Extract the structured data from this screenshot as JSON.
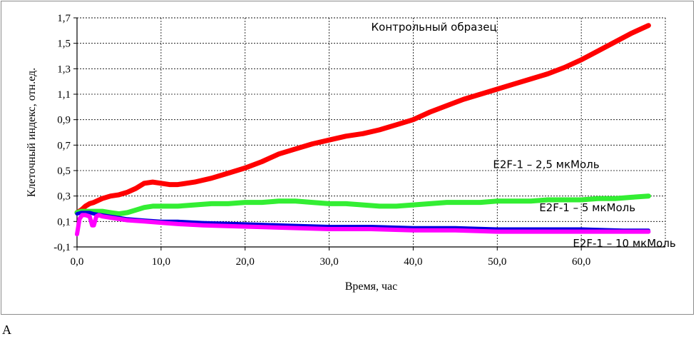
{
  "panel_label": "А",
  "chart_data": {
    "type": "line",
    "title": "",
    "xlabel": "Время, час",
    "ylabel": "Клеточный индекс, отн.ед.",
    "xlim": [
      0,
      70
    ],
    "ylim": [
      -0.1,
      1.7
    ],
    "x_ticks": [
      "0,0",
      "10,0",
      "20,0",
      "30,0",
      "40,0",
      "50,0",
      "60,0"
    ],
    "x_tick_values": [
      0,
      10,
      20,
      30,
      40,
      50,
      60
    ],
    "y_ticks": [
      "-0,1",
      "0,1",
      "0,3",
      "0,5",
      "0,7",
      "0,9",
      "1,1",
      "1,3",
      "1,5",
      "1,7"
    ],
    "y_tick_values": [
      -0.1,
      0.1,
      0.3,
      0.5,
      0.7,
      0.9,
      1.1,
      1.3,
      1.5,
      1.7
    ],
    "grid": true,
    "legend": "none",
    "series": [
      {
        "name": "Контрольный образец",
        "color": "#ff0000",
        "x": [
          0,
          0.5,
          1,
          1.5,
          2,
          3,
          4,
          5,
          6,
          7,
          8,
          9,
          10,
          11,
          12,
          14,
          16,
          18,
          20,
          22,
          24,
          26,
          28,
          30,
          32,
          34,
          36,
          38,
          40,
          42,
          44,
          46,
          48,
          50,
          52,
          54,
          56,
          58,
          60,
          62,
          64,
          66,
          68
        ],
        "y": [
          0.17,
          0.19,
          0.22,
          0.24,
          0.25,
          0.28,
          0.3,
          0.31,
          0.33,
          0.36,
          0.4,
          0.41,
          0.4,
          0.39,
          0.39,
          0.41,
          0.44,
          0.48,
          0.52,
          0.57,
          0.63,
          0.67,
          0.71,
          0.74,
          0.77,
          0.79,
          0.82,
          0.86,
          0.9,
          0.96,
          1.01,
          1.06,
          1.1,
          1.14,
          1.18,
          1.22,
          1.26,
          1.31,
          1.37,
          1.44,
          1.51,
          1.58,
          1.64
        ],
        "annotation": "Контрольный образец",
        "annotation_anchor": [
          35,
          1.6
        ]
      },
      {
        "name": "E2F-1 – 2,5 мкМоль",
        "color": "#33ee33",
        "x": [
          0,
          0.5,
          1,
          1.5,
          2,
          3,
          4,
          5,
          6,
          7,
          8,
          9,
          10,
          12,
          14,
          16,
          18,
          20,
          22,
          24,
          26,
          28,
          30,
          32,
          34,
          36,
          38,
          40,
          42,
          44,
          46,
          48,
          50,
          52,
          54,
          56,
          58,
          60,
          62,
          64,
          66,
          68
        ],
        "y": [
          0.17,
          0.18,
          0.18,
          0.18,
          0.18,
          0.18,
          0.17,
          0.16,
          0.17,
          0.19,
          0.21,
          0.22,
          0.22,
          0.22,
          0.23,
          0.24,
          0.24,
          0.25,
          0.25,
          0.26,
          0.26,
          0.25,
          0.24,
          0.24,
          0.23,
          0.22,
          0.22,
          0.23,
          0.24,
          0.25,
          0.25,
          0.25,
          0.26,
          0.26,
          0.26,
          0.27,
          0.27,
          0.27,
          0.28,
          0.28,
          0.29,
          0.3
        ],
        "annotation": "E2F-1 – 2,5 мкМоль",
        "annotation_anchor": [
          49.5,
          0.52
        ]
      },
      {
        "name": "E2F-1 – 5 мкМоль",
        "color": "#0000dd",
        "x": [
          0,
          0.5,
          1,
          1.5,
          2,
          3,
          4,
          5,
          6,
          8,
          10,
          12,
          15,
          20,
          25,
          30,
          35,
          40,
          45,
          50,
          55,
          60,
          65,
          68
        ],
        "y": [
          0.16,
          0.17,
          0.17,
          0.17,
          0.16,
          0.15,
          0.14,
          0.13,
          0.12,
          0.11,
          0.1,
          0.1,
          0.09,
          0.08,
          0.07,
          0.06,
          0.06,
          0.05,
          0.05,
          0.04,
          0.04,
          0.04,
          0.03,
          0.03
        ],
        "annotation": "E2F-1 – 5 мкМоль",
        "annotation_anchor": [
          55,
          0.18
        ]
      },
      {
        "name": "E2F-1 – 10 мкМоль",
        "color": "#ff00ff",
        "x": [
          0,
          0.3,
          0.6,
          1,
          1.5,
          1.8,
          2,
          2.3,
          2.6,
          3,
          4,
          5,
          6,
          8,
          10,
          12,
          15,
          20,
          25,
          30,
          35,
          40,
          45,
          50,
          55,
          60,
          65,
          68
        ],
        "y": [
          0.0,
          0.12,
          0.15,
          0.15,
          0.14,
          0.07,
          0.07,
          0.14,
          0.15,
          0.14,
          0.13,
          0.12,
          0.11,
          0.1,
          0.09,
          0.08,
          0.07,
          0.06,
          0.05,
          0.04,
          0.04,
          0.03,
          0.03,
          0.02,
          0.02,
          0.02,
          0.02,
          0.02
        ],
        "annotation": "E2F-1 – 10 мкМоль",
        "annotation_anchor": [
          59,
          -0.1
        ]
      }
    ]
  }
}
